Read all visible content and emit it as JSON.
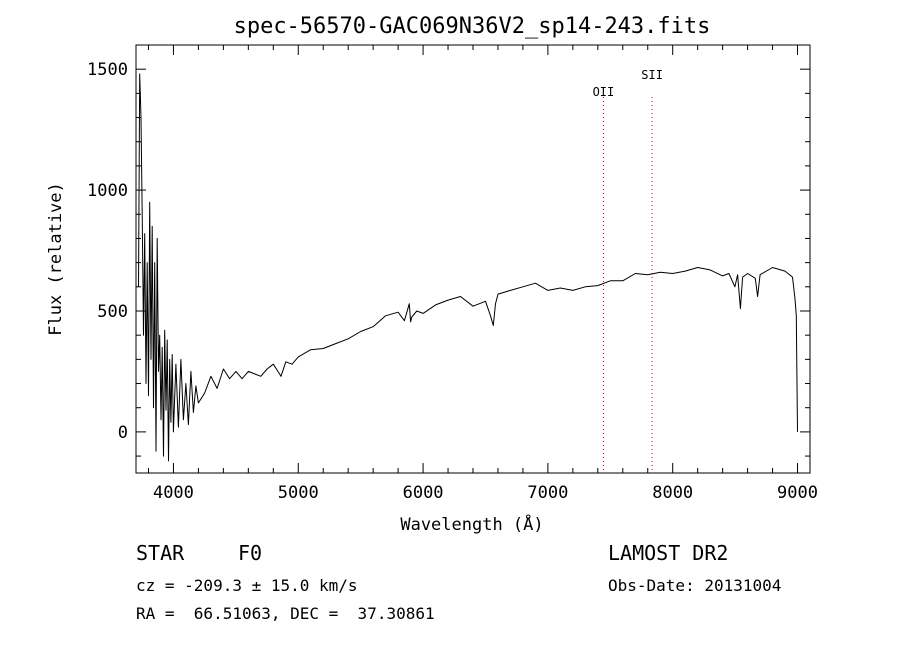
{
  "chart_data": {
    "type": "line",
    "title": "spec-56570-GAC069N36V2_sp14-243.fits",
    "xlabel": "Wavelength (Å)",
    "ylabel": "Flux (relative)",
    "xlim": [
      3700,
      9100
    ],
    "ylim": [
      -170,
      1600
    ],
    "x_ticks": [
      {
        "value": 4000,
        "label": "4000"
      },
      {
        "value": 5000,
        "label": "5000"
      },
      {
        "value": 6000,
        "label": "6000"
      },
      {
        "value": 7000,
        "label": "7000"
      },
      {
        "value": 8000,
        "label": "8000"
      },
      {
        "value": 9000,
        "label": "9000"
      }
    ],
    "y_ticks": [
      {
        "value": 0,
        "label": "0"
      },
      {
        "value": 500,
        "label": "500"
      },
      {
        "value": 1000,
        "label": "1000"
      },
      {
        "value": 1500,
        "label": "1500"
      }
    ],
    "grid": false,
    "line_color": "#000000",
    "line_markers": [
      {
        "label": "OII",
        "wavelength": 7445,
        "color": "#cc0000",
        "label_level": 1390
      },
      {
        "label": "SII",
        "wavelength": 7835,
        "color": "#cc0000",
        "label_level": 1460
      }
    ],
    "series": [
      {
        "x": [
          3720,
          3730,
          3740,
          3750,
          3760,
          3770,
          3780,
          3790,
          3800,
          3810,
          3820,
          3830,
          3840,
          3850,
          3860,
          3870,
          3880,
          3890,
          3900,
          3910,
          3920,
          3930,
          3940,
          3950,
          3960,
          3970,
          3980,
          3990,
          4000,
          4020,
          4040,
          4060,
          4080,
          4100,
          4120,
          4140,
          4160,
          4180,
          4200,
          4250,
          4300,
          4350,
          4400,
          4450,
          4500,
          4550,
          4600,
          4650,
          4700,
          4750,
          4800,
          4850,
          4862,
          4900,
          4950,
          5000,
          5100,
          5200,
          5300,
          5400,
          5500,
          5600,
          5700,
          5800,
          5850,
          5890,
          5900,
          5910,
          5950,
          6000,
          6100,
          6200,
          6300,
          6400,
          6500,
          6540,
          6563,
          6580,
          6600,
          6700,
          6800,
          6900,
          7000,
          7100,
          7200,
          7300,
          7400,
          7500,
          7600,
          7700,
          7800,
          7900,
          8000,
          8100,
          8200,
          8300,
          8400,
          8450,
          8498,
          8520,
          8542,
          8560,
          8600,
          8662,
          8680,
          8700,
          8800,
          8900,
          8960,
          8980,
          8990,
          9000
        ],
        "y": [
          600,
          1480,
          1300,
          900,
          400,
          820,
          200,
          700,
          150,
          950,
          300,
          850,
          100,
          700,
          -80,
          800,
          250,
          400,
          50,
          350,
          -100,
          420,
          90,
          380,
          -120,
          300,
          40,
          320,
          0,
          280,
          20,
          300,
          50,
          200,
          30,
          250,
          80,
          190,
          120,
          160,
          230,
          180,
          260,
          220,
          250,
          220,
          250,
          240,
          230,
          260,
          280,
          240,
          230,
          290,
          280,
          310,
          340,
          345,
          365,
          385,
          415,
          435,
          480,
          495,
          460,
          530,
          455,
          475,
          500,
          490,
          525,
          545,
          560,
          520,
          540,
          480,
          440,
          530,
          570,
          585,
          600,
          615,
          585,
          595,
          585,
          600,
          605,
          625,
          625,
          655,
          650,
          660,
          655,
          665,
          680,
          670,
          645,
          655,
          600,
          650,
          510,
          640,
          655,
          635,
          560,
          650,
          680,
          665,
          640,
          550,
          480,
          0
        ]
      }
    ]
  },
  "footer": {
    "object_type": "STAR",
    "subclass": "F0",
    "cz": "cz = -209.3 ± 15.0 km/s",
    "coords": "RA =  66.51063, DEC =  37.30861",
    "survey": "LAMOST DR2",
    "obs_date": "Obs-Date: 20131004"
  }
}
